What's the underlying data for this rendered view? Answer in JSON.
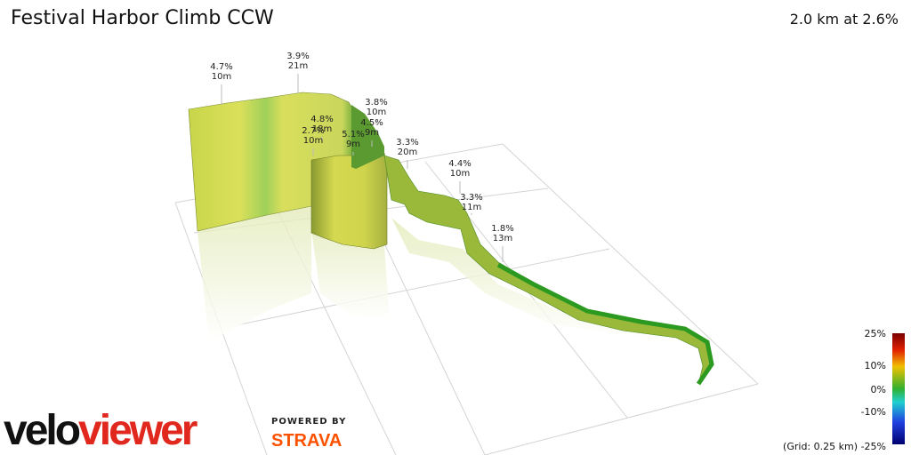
{
  "header": {
    "title": "Festival Harbor Climb CCW",
    "summary": "2.0 km at 2.6%"
  },
  "annotations": [
    {
      "grade": "4.7%",
      "elevation": "10m"
    },
    {
      "grade": "3.9%",
      "elevation": "21m"
    },
    {
      "grade": "3.8%",
      "elevation": "10m"
    },
    {
      "grade": "4.8%",
      "elevation": "18m"
    },
    {
      "grade": "4.5%",
      "elevation": "9m"
    },
    {
      "grade": "2.7%",
      "elevation": "10m"
    },
    {
      "grade": "5.1%",
      "elevation": "9m"
    },
    {
      "grade": "3.3%",
      "elevation": "20m"
    },
    {
      "grade": "4.4%",
      "elevation": "10m"
    },
    {
      "grade": "3.3%",
      "elevation": "11m"
    },
    {
      "grade": "1.8%",
      "elevation": "13m"
    }
  ],
  "color_scale": {
    "labels": [
      "25%",
      "10%",
      "0%",
      "-10%",
      "-25%"
    ],
    "grid_note": "(Grid: 0.25 km)"
  },
  "branding": {
    "logo_first": "velo",
    "logo_second": "viewer",
    "powered_by": "POWERED BY",
    "partner": "STRAVA"
  }
}
